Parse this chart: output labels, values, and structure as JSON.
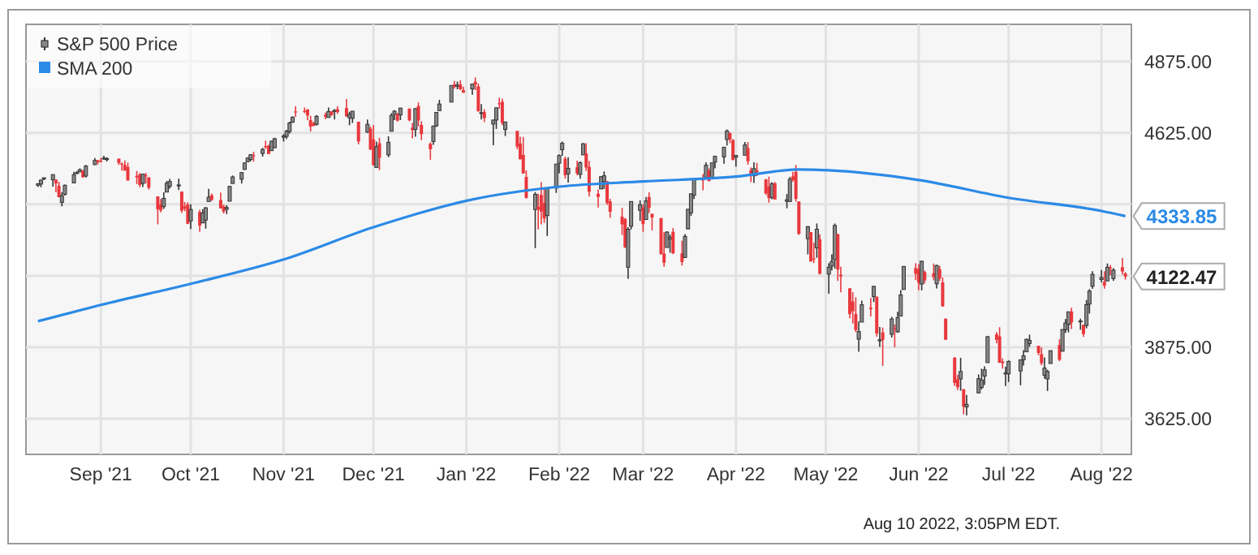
{
  "chart_data": {
    "type": "candlestick",
    "grid": true,
    "legend": "top left",
    "xlim": [
      "2021-08-07",
      "2022-08-11"
    ],
    "xticks": [
      {
        "value": "2021-09-01",
        "label": "Sep '21"
      },
      {
        "value": "2021-10-01",
        "label": "Oct '21"
      },
      {
        "value": "2021-11-01",
        "label": "Nov '21"
      },
      {
        "value": "2021-12-01",
        "label": "Dec '21"
      },
      {
        "value": "2022-01-01",
        "label": "Jan '22"
      },
      {
        "value": "2022-02-01",
        "label": "Feb '22"
      },
      {
        "value": "2022-03-01",
        "label": "Mar '22"
      },
      {
        "value": "2022-04-01",
        "label": "Apr '22"
      },
      {
        "value": "2022-05-01",
        "label": "May '22"
      },
      {
        "value": "2022-06-01",
        "label": "Jun '22"
      },
      {
        "value": "2022-07-01",
        "label": "Jul '22"
      },
      {
        "value": "2022-08-01",
        "label": "Aug '22"
      }
    ],
    "ylim": [
      3500,
      5005
    ],
    "yticks": [
      {
        "value": 3625,
        "label": "3625.00"
      },
      {
        "value": 3875,
        "label": "3875.00"
      },
      {
        "value": 4125,
        "label": null
      },
      {
        "value": 4375,
        "label": null
      },
      {
        "value": 4625,
        "label": "4625.00"
      },
      {
        "value": 4875,
        "label": "4875.00"
      }
    ],
    "annotations": [
      {
        "text": "4333.85",
        "x": "2022-08-09",
        "y": 4333.85
      },
      {
        "text": "4122.47",
        "x": "2022-08-09",
        "y": 4122.47
      },
      "Aug 10 2022, 3:05PM EDT."
    ],
    "series": [
      {
        "name": "S&P 500 Price",
        "x": [
          "2021-08-11",
          "2021-08-12",
          "2021-08-13",
          "2021-08-16",
          "2021-08-17",
          "2021-08-18",
          "2021-08-19",
          "2021-08-20",
          "2021-08-23",
          "2021-08-24",
          "2021-08-25",
          "2021-08-26",
          "2021-08-27",
          "2021-08-30",
          "2021-08-31",
          "2021-09-01",
          "2021-09-02",
          "2021-09-03",
          "2021-09-07",
          "2021-09-08",
          "2021-09-09",
          "2021-09-10",
          "2021-09-13",
          "2021-09-14",
          "2021-09-15",
          "2021-09-16",
          "2021-09-17",
          "2021-09-20",
          "2021-09-21",
          "2021-09-22",
          "2021-09-23",
          "2021-09-24",
          "2021-09-27",
          "2021-09-28",
          "2021-09-29",
          "2021-09-30",
          "2021-10-01",
          "2021-10-04",
          "2021-10-05",
          "2021-10-06",
          "2021-10-07",
          "2021-10-08",
          "2021-10-11",
          "2021-10-12",
          "2021-10-13",
          "2021-10-14",
          "2021-10-15",
          "2021-10-18",
          "2021-10-19",
          "2021-10-20",
          "2021-10-21",
          "2021-10-22",
          "2021-10-25",
          "2021-10-26",
          "2021-10-27",
          "2021-10-28",
          "2021-10-29",
          "2021-11-01",
          "2021-11-02",
          "2021-11-03",
          "2021-11-04",
          "2021-11-05",
          "2021-11-08",
          "2021-11-09",
          "2021-11-10",
          "2021-11-11",
          "2021-11-12",
          "2021-11-15",
          "2021-11-16",
          "2021-11-17",
          "2021-11-18",
          "2021-11-19",
          "2021-11-22",
          "2021-11-23",
          "2021-11-24",
          "2021-11-26",
          "2021-11-29",
          "2021-11-30",
          "2021-12-01",
          "2021-12-02",
          "2021-12-03",
          "2021-12-06",
          "2021-12-07",
          "2021-12-08",
          "2021-12-09",
          "2021-12-10",
          "2021-12-13",
          "2021-12-14",
          "2021-12-15",
          "2021-12-16",
          "2021-12-17",
          "2021-12-20",
          "2021-12-21",
          "2021-12-22",
          "2021-12-23",
          "2021-12-27",
          "2021-12-28",
          "2021-12-29",
          "2021-12-30",
          "2021-12-31",
          "2022-01-03",
          "2022-01-04",
          "2022-01-05",
          "2022-01-06",
          "2022-01-07",
          "2022-01-10",
          "2022-01-11",
          "2022-01-12",
          "2022-01-13",
          "2022-01-14",
          "2022-01-18",
          "2022-01-19",
          "2022-01-20",
          "2022-01-21",
          "2022-01-24",
          "2022-01-25",
          "2022-01-26",
          "2022-01-27",
          "2022-01-28",
          "2022-01-31",
          "2022-02-01",
          "2022-02-02",
          "2022-02-03",
          "2022-02-04",
          "2022-02-07",
          "2022-02-08",
          "2022-02-09",
          "2022-02-10",
          "2022-02-11",
          "2022-02-14",
          "2022-02-15",
          "2022-02-16",
          "2022-02-17",
          "2022-02-18",
          "2022-02-22",
          "2022-02-23",
          "2022-02-24",
          "2022-02-25",
          "2022-02-28",
          "2022-03-01",
          "2022-03-02",
          "2022-03-03",
          "2022-03-04",
          "2022-03-07",
          "2022-03-08",
          "2022-03-09",
          "2022-03-10",
          "2022-03-11",
          "2022-03-14",
          "2022-03-15",
          "2022-03-16",
          "2022-03-17",
          "2022-03-18",
          "2022-03-21",
          "2022-03-22",
          "2022-03-23",
          "2022-03-24",
          "2022-03-25",
          "2022-03-28",
          "2022-03-29",
          "2022-03-30",
          "2022-03-31",
          "2022-04-01",
          "2022-04-04",
          "2022-04-05",
          "2022-04-06",
          "2022-04-07",
          "2022-04-08",
          "2022-04-11",
          "2022-04-12",
          "2022-04-13",
          "2022-04-14",
          "2022-04-18",
          "2022-04-19",
          "2022-04-20",
          "2022-04-21",
          "2022-04-22",
          "2022-04-25",
          "2022-04-26",
          "2022-04-27",
          "2022-04-28",
          "2022-04-29",
          "2022-05-02",
          "2022-05-03",
          "2022-05-04",
          "2022-05-05",
          "2022-05-06",
          "2022-05-09",
          "2022-05-10",
          "2022-05-11",
          "2022-05-12",
          "2022-05-13",
          "2022-05-16",
          "2022-05-17",
          "2022-05-18",
          "2022-05-19",
          "2022-05-20",
          "2022-05-23",
          "2022-05-24",
          "2022-05-25",
          "2022-05-26",
          "2022-05-27",
          "2022-05-31",
          "2022-06-01",
          "2022-06-02",
          "2022-06-03",
          "2022-06-06",
          "2022-06-07",
          "2022-06-08",
          "2022-06-09",
          "2022-06-10",
          "2022-06-13",
          "2022-06-14",
          "2022-06-15",
          "2022-06-16",
          "2022-06-17",
          "2022-06-21",
          "2022-06-22",
          "2022-06-23",
          "2022-06-24",
          "2022-06-27",
          "2022-06-28",
          "2022-06-29",
          "2022-06-30",
          "2022-07-01",
          "2022-07-05",
          "2022-07-06",
          "2022-07-07",
          "2022-07-08",
          "2022-07-11",
          "2022-07-12",
          "2022-07-13",
          "2022-07-14",
          "2022-07-15",
          "2022-07-18",
          "2022-07-19",
          "2022-07-20",
          "2022-07-21",
          "2022-07-22",
          "2022-07-25",
          "2022-07-26",
          "2022-07-27",
          "2022-07-28",
          "2022-07-29",
          "2022-08-01",
          "2022-08-02",
          "2022-08-03",
          "2022-08-04",
          "2022-08-05",
          "2022-08-08",
          "2022-08-09"
        ],
        "ohlc": [
          [
            4442,
            4449,
            4436,
            4447
          ],
          [
            4446,
            4461,
            4435,
            4460
          ],
          [
            4464,
            4468,
            4460,
            4468
          ],
          [
            4461,
            4480,
            4437,
            4479
          ],
          [
            4462,
            4462,
            4417,
            4448
          ],
          [
            4440,
            4454,
            4400,
            4400
          ],
          [
            4382,
            4418,
            4368,
            4405
          ],
          [
            4410,
            4444,
            4406,
            4442
          ],
          [
            4450,
            4489,
            4450,
            4479
          ],
          [
            4484,
            4492,
            4482,
            4486
          ],
          [
            4490,
            4501,
            4486,
            4496
          ],
          [
            4493,
            4495,
            4468,
            4470
          ],
          [
            4474,
            4513,
            4469,
            4509
          ],
          [
            4514,
            4537,
            4513,
            4529
          ],
          [
            4529,
            4531,
            4515,
            4523
          ],
          [
            4528,
            4537,
            4522,
            4524
          ],
          [
            4534,
            4545,
            4531,
            4537
          ],
          [
            4533,
            4540,
            4525,
            4535
          ],
          [
            4535,
            4535,
            4513,
            4520
          ],
          [
            4518,
            4521,
            4493,
            4514
          ],
          [
            4513,
            4529,
            4493,
            4493
          ],
          [
            4506,
            4521,
            4458,
            4459
          ],
          [
            4475,
            4492,
            4446,
            4469
          ],
          [
            4479,
            4485,
            4435,
            4443
          ],
          [
            4448,
            4481,
            4436,
            4481
          ],
          [
            4477,
            4485,
            4448,
            4474
          ],
          [
            4469,
            4471,
            4427,
            4433
          ],
          [
            4403,
            4403,
            4305,
            4358
          ],
          [
            4375,
            4394,
            4347,
            4354
          ],
          [
            4367,
            4417,
            4359,
            4396
          ],
          [
            4418,
            4457,
            4418,
            4449
          ],
          [
            4438,
            4464,
            4430,
            4455
          ],
          [
            4443,
            4465,
            4425,
            4443
          ],
          [
            4420,
            4420,
            4345,
            4353
          ],
          [
            4368,
            4383,
            4351,
            4360
          ],
          [
            4375,
            4382,
            4306,
            4307
          ],
          [
            4317,
            4375,
            4289,
            4357
          ],
          [
            4348,
            4356,
            4279,
            4301
          ],
          [
            4310,
            4358,
            4310,
            4345
          ],
          [
            4320,
            4365,
            4290,
            4363
          ],
          [
            4385,
            4429,
            4385,
            4400
          ],
          [
            4407,
            4413,
            4387,
            4391
          ],
          [
            4390,
            4416,
            4361,
            4361
          ],
          [
            4368,
            4374,
            4343,
            4350
          ],
          [
            4358,
            4372,
            4341,
            4364
          ],
          [
            4386,
            4439,
            4386,
            4438
          ],
          [
            4448,
            4476,
            4448,
            4471
          ],
          [
            4463,
            4488,
            4448,
            4486
          ],
          [
            4497,
            4521,
            4497,
            4520
          ],
          [
            4524,
            4540,
            4524,
            4537
          ],
          [
            4532,
            4551,
            4526,
            4549
          ],
          [
            4547,
            4559,
            4525,
            4545
          ],
          [
            4553,
            4573,
            4542,
            4567
          ],
          [
            4579,
            4598,
            4569,
            4575
          ],
          [
            4580,
            4584,
            4551,
            4551
          ],
          [
            4563,
            4598,
            4563,
            4596
          ],
          [
            4573,
            4608,
            4573,
            4605
          ],
          [
            4610,
            4621,
            4595,
            4614
          ],
          [
            4613,
            4636,
            4604,
            4631
          ],
          [
            4630,
            4664,
            4623,
            4660
          ],
          [
            4662,
            4683,
            4662,
            4680
          ],
          [
            4700,
            4718,
            4681,
            4697
          ],
          [
            4702,
            4714,
            4694,
            4701
          ],
          [
            4707,
            4708,
            4670,
            4686
          ],
          [
            4670,
            4685,
            4630,
            4647
          ],
          [
            4659,
            4664,
            4648,
            4650
          ],
          [
            4655,
            4688,
            4651,
            4683
          ],
          [
            4689,
            4697,
            4673,
            4682
          ],
          [
            4679,
            4714,
            4679,
            4700
          ],
          [
            4701,
            4701,
            4684,
            4688
          ],
          [
            4700,
            4708,
            4672,
            4704
          ],
          [
            4708,
            4718,
            4692,
            4698
          ],
          [
            4712,
            4744,
            4681,
            4683
          ],
          [
            4678,
            4699,
            4652,
            4690
          ],
          [
            4676,
            4702,
            4660,
            4701
          ],
          [
            4664,
            4664,
            4585,
            4595
          ],
          [
            4628,
            4672,
            4625,
            4655
          ],
          [
            4640,
            4647,
            4565,
            4567
          ],
          [
            4602,
            4652,
            4510,
            4513
          ],
          [
            4504,
            4595,
            4504,
            4577
          ],
          [
            4589,
            4608,
            4495,
            4538
          ],
          [
            4548,
            4613,
            4540,
            4592
          ],
          [
            4631,
            4694,
            4631,
            4686
          ],
          [
            4690,
            4705,
            4670,
            4701
          ],
          [
            4691,
            4695,
            4665,
            4668
          ],
          [
            4688,
            4713,
            4670,
            4712
          ],
          [
            4710,
            4711,
            4666,
            4669
          ],
          [
            4643,
            4660,
            4606,
            4635
          ],
          [
            4637,
            4712,
            4612,
            4710
          ],
          [
            4719,
            4732,
            4648,
            4669
          ],
          [
            4653,
            4666,
            4600,
            4621
          ],
          [
            4587,
            4592,
            4531,
            4568
          ],
          [
            4595,
            4651,
            4583,
            4649
          ],
          [
            4650,
            4698,
            4646,
            4697
          ],
          [
            4703,
            4741,
            4703,
            4726
          ],
          [
            4733,
            4791,
            4733,
            4791
          ],
          [
            4795,
            4807,
            4780,
            4786
          ],
          [
            4788,
            4805,
            4778,
            4793
          ],
          [
            4795,
            4809,
            4775,
            4778
          ],
          [
            4775,
            4787,
            4765,
            4766
          ],
          [
            4779,
            4797,
            4759,
            4796
          ],
          [
            4804,
            4819,
            4775,
            4794
          ],
          [
            4788,
            4798,
            4699,
            4701
          ],
          [
            4693,
            4726,
            4672,
            4696
          ],
          [
            4698,
            4708,
            4663,
            4677
          ],
          [
            4656,
            4671,
            4582,
            4670
          ],
          [
            4670,
            4714,
            4639,
            4713
          ],
          [
            4729,
            4749,
            4710,
            4726
          ],
          [
            4734,
            4745,
            4652,
            4660
          ],
          [
            4637,
            4665,
            4614,
            4663
          ],
          [
            4632,
            4632,
            4568,
            4577
          ],
          [
            4588,
            4612,
            4532,
            4533
          ],
          [
            4548,
            4611,
            4483,
            4483
          ],
          [
            4471,
            4494,
            4395,
            4398
          ],
          [
            4357,
            4418,
            4222,
            4410
          ],
          [
            4366,
            4412,
            4287,
            4357
          ],
          [
            4408,
            4453,
            4305,
            4350
          ],
          [
            4380,
            4429,
            4310,
            4326
          ],
          [
            4336,
            4432,
            4264,
            4432
          ],
          [
            4432,
            4516,
            4415,
            4516
          ],
          [
            4519,
            4550,
            4484,
            4546
          ],
          [
            4566,
            4595,
            4545,
            4589
          ],
          [
            4535,
            4542,
            4465,
            4477
          ],
          [
            4482,
            4540,
            4451,
            4501
          ],
          [
            4505,
            4528,
            4477,
            4484
          ],
          [
            4480,
            4525,
            4465,
            4521
          ],
          [
            4548,
            4590,
            4548,
            4587
          ],
          [
            4553,
            4589,
            4492,
            4504
          ],
          [
            4506,
            4527,
            4402,
            4419
          ],
          [
            4412,
            4427,
            4364,
            4401
          ],
          [
            4429,
            4472,
            4429,
            4472
          ],
          [
            4455,
            4490,
            4429,
            4475
          ],
          [
            4456,
            4456,
            4373,
            4380
          ],
          [
            4385,
            4394,
            4328,
            4349
          ],
          [
            4332,
            4363,
            4268,
            4305
          ],
          [
            4324,
            4327,
            4222,
            4225
          ],
          [
            4155,
            4295,
            4114,
            4288
          ],
          [
            4298,
            4385,
            4287,
            4385
          ],
          [
            4354,
            4389,
            4317,
            4374
          ],
          [
            4363,
            4375,
            4279,
            4306
          ],
          [
            4322,
            4401,
            4322,
            4387
          ],
          [
            4401,
            4417,
            4345,
            4363
          ],
          [
            4342,
            4343,
            4284,
            4329
          ],
          [
            4327,
            4327,
            4199,
            4201
          ],
          [
            4203,
            4277,
            4157,
            4171
          ],
          [
            4224,
            4281,
            4224,
            4278
          ],
          [
            4253,
            4269,
            4206,
            4260
          ],
          [
            4279,
            4292,
            4201,
            4204
          ],
          [
            4203,
            4248,
            4161,
            4173
          ],
          [
            4189,
            4271,
            4187,
            4263
          ],
          [
            4289,
            4358,
            4288,
            4358
          ],
          [
            4345,
            4412,
            4335,
            4412
          ],
          [
            4407,
            4465,
            4394,
            4463
          ],
          [
            4462,
            4481,
            4424,
            4461
          ],
          [
            4469,
            4522,
            4469,
            4512
          ],
          [
            4493,
            4501,
            4455,
            4457
          ],
          [
            4469,
            4521,
            4465,
            4520
          ],
          [
            4523,
            4546,
            4501,
            4543
          ],
          [
            4541,
            4575,
            4517,
            4575
          ],
          [
            4602,
            4637,
            4581,
            4632
          ],
          [
            4624,
            4627,
            4589,
            4602
          ],
          [
            4600,
            4603,
            4530,
            4530
          ],
          [
            4540,
            4548,
            4507,
            4546
          ],
          [
            4547,
            4593,
            4547,
            4583
          ],
          [
            4572,
            4593,
            4514,
            4526
          ],
          [
            4494,
            4504,
            4453,
            4481
          ],
          [
            4475,
            4522,
            4450,
            4500
          ],
          [
            4494,
            4520,
            4474,
            4488
          ],
          [
            4462,
            4464,
            4408,
            4413
          ],
          [
            4438,
            4472,
            4381,
            4397
          ],
          [
            4398,
            4453,
            4393,
            4447
          ],
          [
            4449,
            4453,
            4392,
            4392
          ],
          [
            4386,
            4411,
            4361,
            4391
          ],
          [
            4385,
            4471,
            4385,
            4463
          ],
          [
            4473,
            4489,
            4455,
            4460
          ],
          [
            4489,
            4513,
            4385,
            4394
          ],
          [
            4385,
            4386,
            4268,
            4272
          ],
          [
            4255,
            4299,
            4200,
            4297
          ],
          [
            4278,
            4278,
            4175,
            4175
          ],
          [
            4186,
            4241,
            4170,
            4183
          ],
          [
            4223,
            4308,
            4188,
            4288
          ],
          [
            4253,
            4270,
            4130,
            4132
          ],
          [
            4131,
            4169,
            4062,
            4155
          ],
          [
            4159,
            4200,
            4144,
            4175
          ],
          [
            4181,
            4308,
            4150,
            4301
          ],
          [
            4271,
            4271,
            4107,
            4147
          ],
          [
            4129,
            4157,
            4067,
            4123
          ],
          [
            4081,
            4082,
            3976,
            3991
          ],
          [
            4035,
            4068,
            3958,
            4001
          ],
          [
            3991,
            4050,
            3928,
            3935
          ],
          [
            3903,
            3965,
            3859,
            3930
          ],
          [
            3963,
            4038,
            3963,
            4024
          ],
          [
            4013,
            4047,
            3983,
            4008
          ],
          [
            4052,
            4090,
            4033,
            4088
          ],
          [
            4052,
            4052,
            3912,
            3923
          ],
          [
            3900,
            3946,
            3876,
            3901
          ],
          [
            3927,
            3944,
            3810,
            3901
          ],
          [
            3920,
            3981,
            3909,
            3974
          ],
          [
            3942,
            3955,
            3875,
            3941
          ],
          [
            3929,
            3999,
            3925,
            3979
          ],
          [
            3984,
            4075,
            3984,
            4058
          ],
          [
            4077,
            4158,
            4077,
            4158
          ],
          [
            4152,
            4169,
            4110,
            4132
          ],
          [
            4149,
            4166,
            4074,
            4101
          ],
          [
            4096,
            4177,
            4074,
            4176
          ],
          [
            4138,
            4143,
            4098,
            4109
          ],
          [
            4134,
            4168,
            4109,
            4121
          ],
          [
            4097,
            4164,
            4081,
            4161
          ],
          [
            4148,
            4160,
            4107,
            4116
          ],
          [
            4102,
            4119,
            4017,
            4018
          ],
          [
            3975,
            3975,
            3901,
            3901
          ],
          [
            3839,
            3839,
            3740,
            3750
          ],
          [
            3763,
            3778,
            3725,
            3735
          ],
          [
            3764,
            3838,
            3723,
            3790
          ],
          [
            3728,
            3728,
            3640,
            3667
          ],
          [
            3666,
            3708,
            3636,
            3675
          ],
          [
            3715,
            3780,
            3715,
            3765
          ],
          [
            3734,
            3800,
            3727,
            3760
          ],
          [
            3774,
            3808,
            3743,
            3796
          ],
          [
            3821,
            3914,
            3821,
            3912
          ],
          [
            3920,
            3928,
            3889,
            3901
          ],
          [
            3913,
            3945,
            3820,
            3821
          ],
          [
            3825,
            3836,
            3800,
            3819
          ],
          [
            3785,
            3807,
            3739,
            3785
          ],
          [
            3782,
            3829,
            3753,
            3825
          ],
          [
            3792,
            3832,
            3742,
            3831
          ],
          [
            3831,
            3865,
            3811,
            3845
          ],
          [
            3859,
            3905,
            3859,
            3903
          ],
          [
            3888,
            3919,
            3876,
            3899
          ],
          [
            3880,
            3880,
            3847,
            3855
          ],
          [
            3851,
            3874,
            3812,
            3819
          ],
          [
            3777,
            3839,
            3765,
            3802
          ],
          [
            3764,
            3796,
            3722,
            3790
          ],
          [
            3818,
            3864,
            3818,
            3863
          ],
          [
            3883,
            3903,
            3826,
            3831
          ],
          [
            3861,
            3937,
            3861,
            3937
          ],
          [
            3936,
            3974,
            3925,
            3960
          ],
          [
            3955,
            3999,
            3927,
            3999
          ],
          [
            4000,
            4013,
            3939,
            3962
          ],
          [
            3965,
            3975,
            3936,
            3967
          ],
          [
            3953,
            3954,
            3911,
            3921
          ],
          [
            3951,
            4040,
            3941,
            4024
          ],
          [
            4026,
            4078,
            3993,
            4072
          ],
          [
            4088,
            4141,
            4079,
            4130
          ],
          [
            4112,
            4145,
            4102,
            4119
          ],
          [
            4104,
            4141,
            4080,
            4091
          ],
          [
            4107,
            4168,
            4107,
            4155
          ],
          [
            4154,
            4162,
            4127,
            4152
          ],
          [
            4115,
            4152,
            4107,
            4145
          ],
          [
            4155,
            4187,
            4129,
            4140
          ],
          [
            4133,
            4138,
            4112,
            4122.47
          ]
        ]
      },
      {
        "name": "SMA 200",
        "type": "line",
        "color": "#2b8ae6",
        "x": [
          "2021-08-11",
          "2021-09-01",
          "2021-10-01",
          "2021-11-01",
          "2021-12-01",
          "2022-01-03",
          "2022-02-01",
          "2022-03-01",
          "2022-04-01",
          "2022-04-22",
          "2022-05-02",
          "2022-06-01",
          "2022-07-01",
          "2022-08-01",
          "2022-08-09"
        ],
        "values": [
          3966,
          4023,
          4097,
          4182,
          4295,
          4392,
          4437,
          4455,
          4472,
          4497,
          4494,
          4460,
          4398,
          4352,
          4333.85
        ]
      }
    ]
  }
}
